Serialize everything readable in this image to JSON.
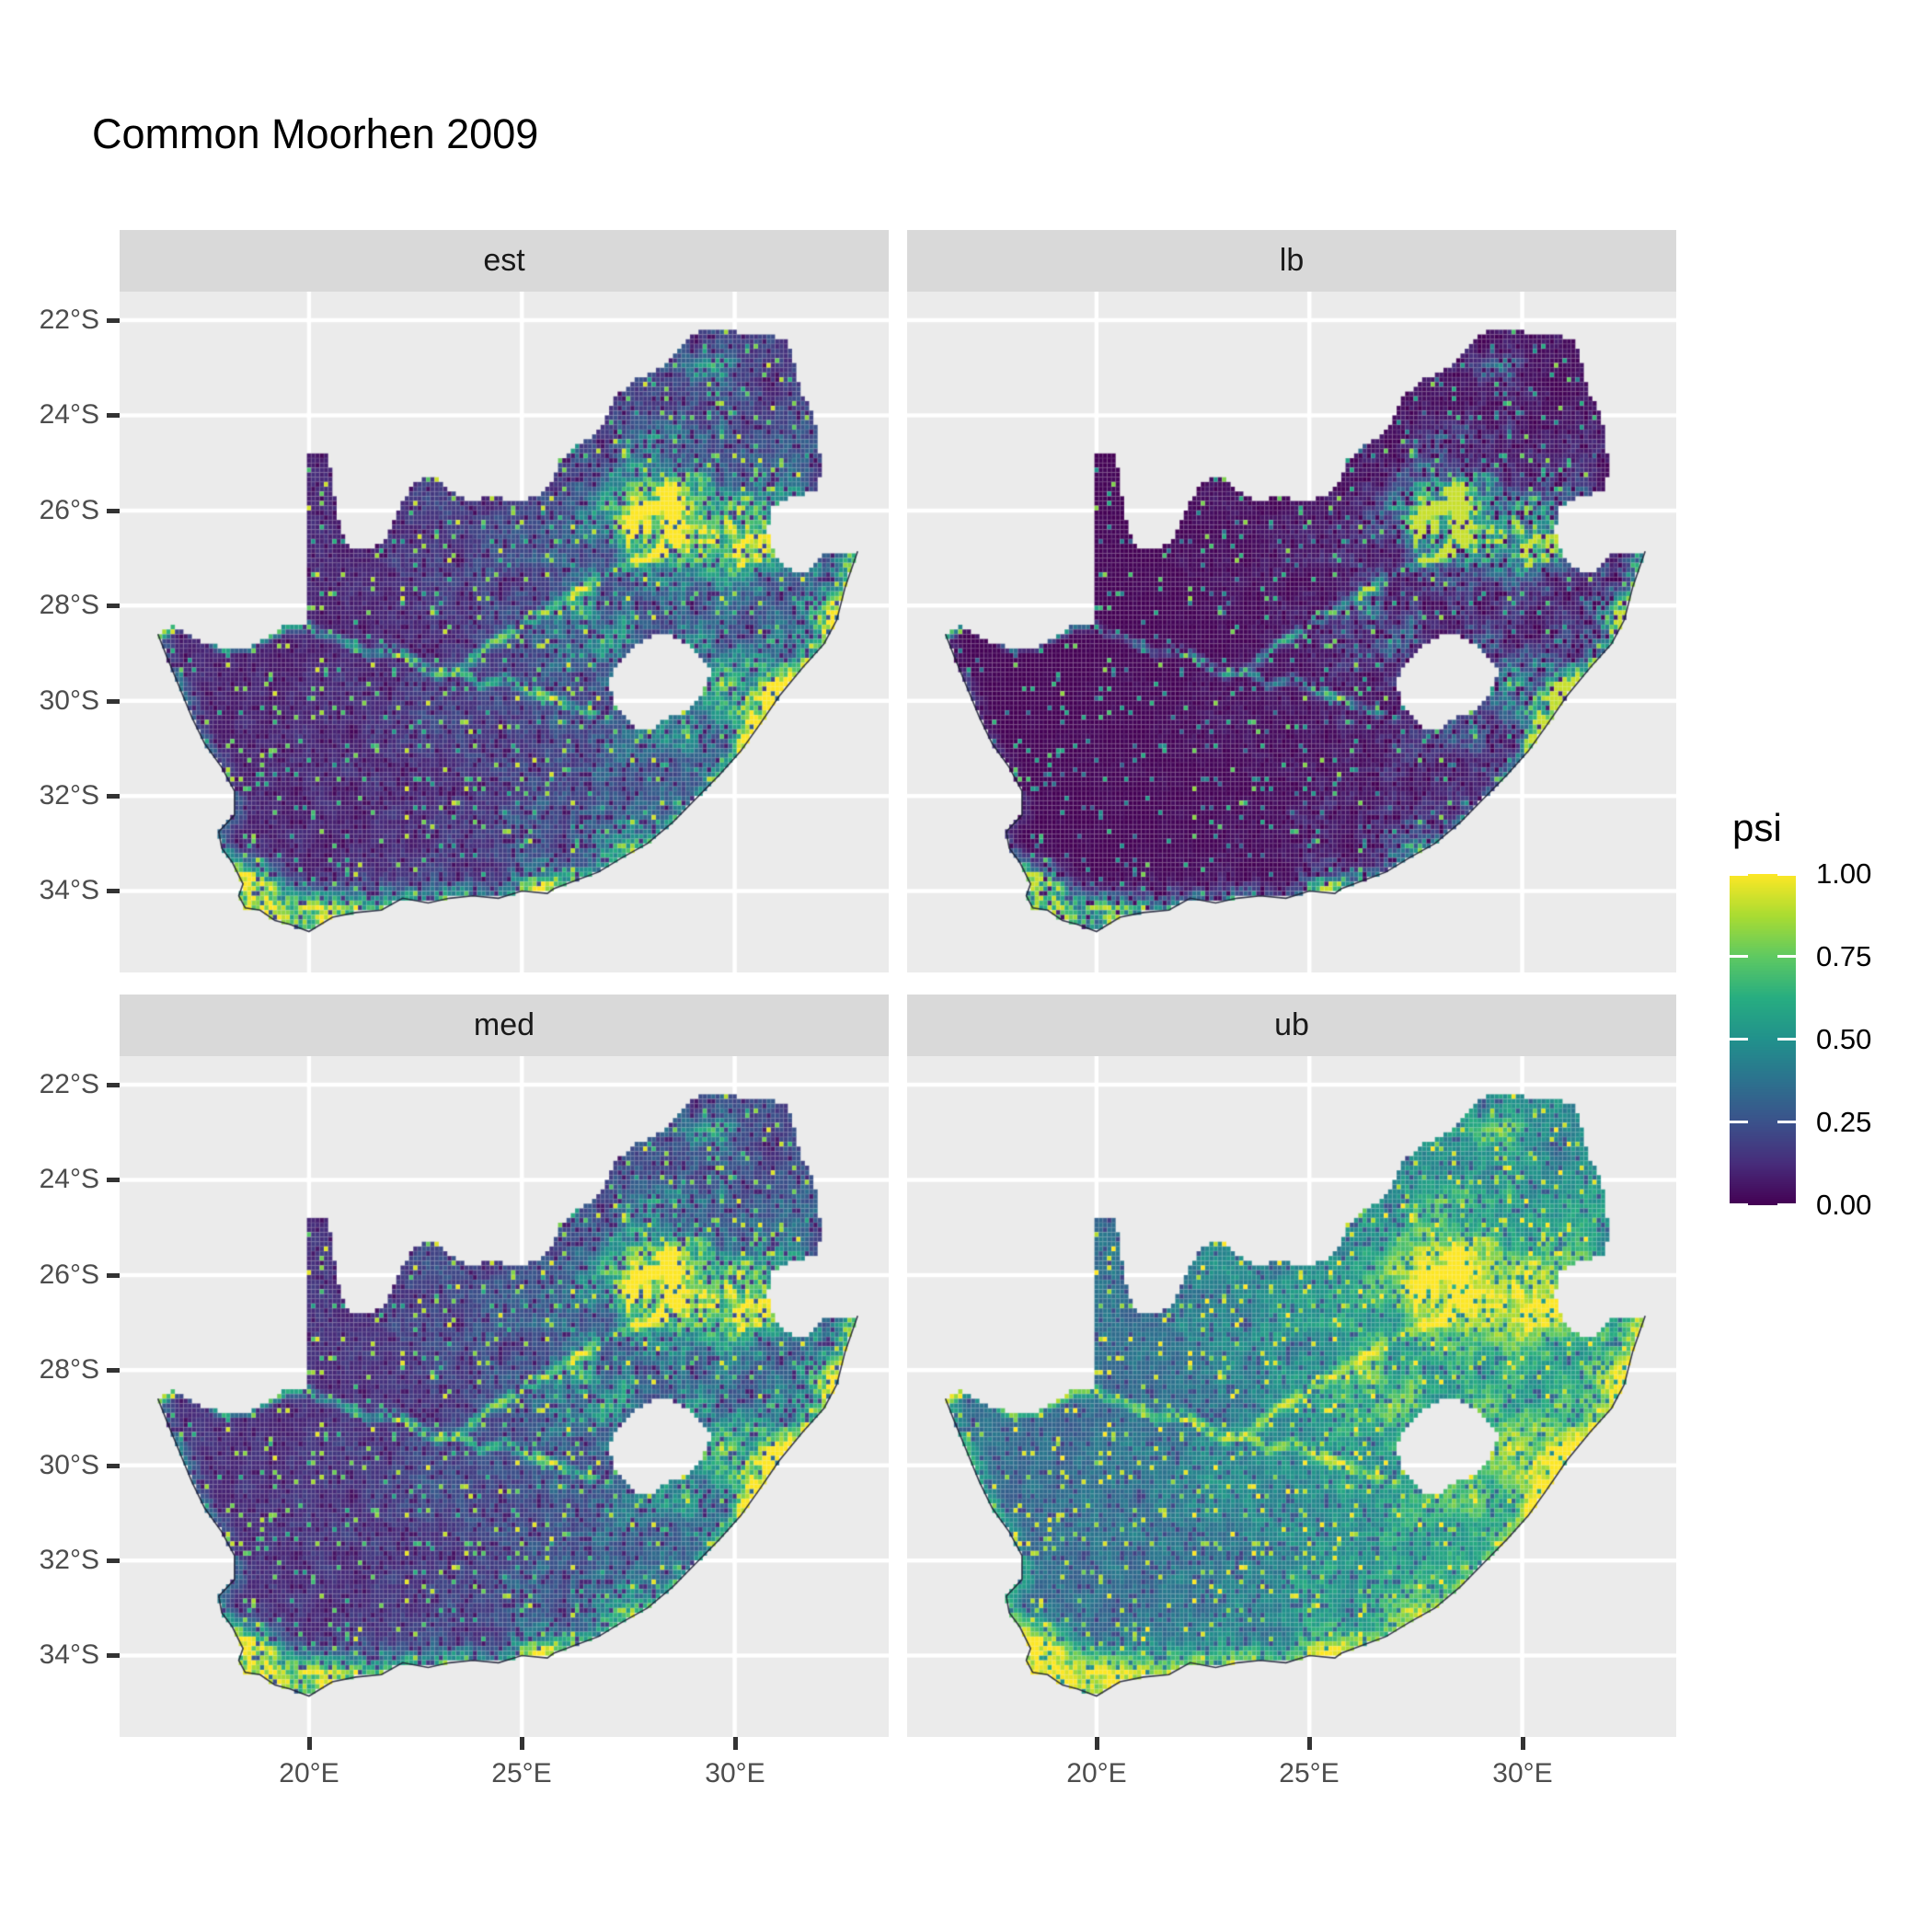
{
  "title": "Common Moorhen 2009",
  "facets": [
    {
      "id": "est",
      "label": "est"
    },
    {
      "id": "lb",
      "label": "lb"
    },
    {
      "id": "med",
      "label": "med"
    },
    {
      "id": "ub",
      "label": "ub"
    }
  ],
  "x_axis": {
    "ticks": [
      "20°E",
      "25°E",
      "30°E"
    ],
    "values": [
      20,
      25,
      30
    ]
  },
  "y_axis": {
    "ticks": [
      "22°S",
      "24°S",
      "26°S",
      "28°S",
      "30°S",
      "32°S",
      "34°S"
    ],
    "values": [
      -22,
      -24,
      -26,
      -28,
      -30,
      -32,
      -34
    ]
  },
  "legend": {
    "title": "psi",
    "tick_labels": [
      "1.00",
      "0.75",
      "0.50",
      "0.25",
      "0.00"
    ],
    "tick_values": [
      1.0,
      0.75,
      0.5,
      0.25,
      0.0
    ]
  },
  "colors": {
    "panel_bg": "#EBEBEB",
    "strip_bg": "#D9D9D9",
    "grid": "#FFFFFF",
    "tick": "#333333",
    "axis_text": "#4D4D4D",
    "strip_text": "#1A1A1A",
    "title_text": "#000000",
    "viridis": [
      "#440154",
      "#472D7B",
      "#3B528B",
      "#2C728E",
      "#21918C",
      "#27AD81",
      "#5EC962",
      "#AADC32",
      "#FDE725"
    ]
  },
  "chart_data": {
    "type": "heatmap",
    "title": "Common Moorhen 2009",
    "variable": "psi",
    "value_range": [
      0,
      1
    ],
    "facet_variable_values": [
      "est",
      "lb",
      "med",
      "ub"
    ],
    "region": "South Africa",
    "hole_region": "Lesotho",
    "lon_range": [
      15.55,
      33.62
    ],
    "lat_range": [
      -35.71,
      -21.4
    ],
    "cell_size_deg": 0.1,
    "grid_lons": [
      20,
      25,
      30
    ],
    "grid_lats": [
      -22,
      -24,
      -26,
      -28,
      -30,
      -32,
      -34
    ],
    "panel_transforms": {
      "est": {
        "gamma": 1.0,
        "gain": 1.0,
        "offset": 0.0
      },
      "lb": {
        "gamma": 1.7,
        "gain": 0.93,
        "offset": -0.01
      },
      "med": {
        "gamma": 0.93,
        "gain": 1.0,
        "offset": 0.02
      },
      "ub": {
        "gamma": 0.5,
        "gain": 1.0,
        "offset": 0.05
      }
    },
    "sa_polygon": [
      [
        16.45,
        -28.6
      ],
      [
        16.8,
        -28.4
      ],
      [
        17.15,
        -28.6
      ],
      [
        17.6,
        -28.8
      ],
      [
        18.1,
        -28.9
      ],
      [
        18.55,
        -28.88
      ],
      [
        19.0,
        -28.68
      ],
      [
        19.4,
        -28.45
      ],
      [
        19.75,
        -28.4
      ],
      [
        19.98,
        -28.45
      ],
      [
        19.98,
        -24.78
      ],
      [
        20.45,
        -24.8
      ],
      [
        20.55,
        -25.4
      ],
      [
        20.65,
        -26.0
      ],
      [
        20.78,
        -26.45
      ],
      [
        20.95,
        -26.8
      ],
      [
        21.45,
        -26.85
      ],
      [
        21.85,
        -26.55
      ],
      [
        22.15,
        -25.9
      ],
      [
        22.5,
        -25.38
      ],
      [
        23.0,
        -25.28
      ],
      [
        23.35,
        -25.62
      ],
      [
        23.75,
        -25.82
      ],
      [
        24.3,
        -25.7
      ],
      [
        24.9,
        -25.8
      ],
      [
        25.4,
        -25.68
      ],
      [
        25.7,
        -25.45
      ],
      [
        25.9,
        -24.95
      ],
      [
        26.3,
        -24.65
      ],
      [
        26.85,
        -24.3
      ],
      [
        27.15,
        -23.65
      ],
      [
        27.7,
        -23.25
      ],
      [
        28.3,
        -23.0
      ],
      [
        29.05,
        -22.3
      ],
      [
        29.5,
        -22.15
      ],
      [
        30.05,
        -22.25
      ],
      [
        30.6,
        -22.3
      ],
      [
        31.25,
        -22.4
      ],
      [
        31.4,
        -22.9
      ],
      [
        31.55,
        -23.5
      ],
      [
        31.85,
        -23.95
      ],
      [
        31.95,
        -24.5
      ],
      [
        32.05,
        -25.1
      ],
      [
        31.95,
        -25.55
      ],
      [
        31.3,
        -25.75
      ],
      [
        30.85,
        -25.95
      ],
      [
        30.78,
        -26.4
      ],
      [
        30.9,
        -26.8
      ],
      [
        31.15,
        -27.2
      ],
      [
        31.6,
        -27.32
      ],
      [
        31.97,
        -27.1
      ],
      [
        32.05,
        -26.86
      ],
      [
        32.5,
        -26.86
      ],
      [
        32.89,
        -26.86
      ],
      [
        32.6,
        -27.6
      ],
      [
        32.4,
        -28.3
      ],
      [
        32.1,
        -28.8
      ],
      [
        31.6,
        -29.3
      ],
      [
        31.05,
        -29.9
      ],
      [
        30.55,
        -30.55
      ],
      [
        30.15,
        -31.05
      ],
      [
        29.65,
        -31.55
      ],
      [
        29.1,
        -32.05
      ],
      [
        28.55,
        -32.55
      ],
      [
        27.95,
        -33.0
      ],
      [
        27.35,
        -33.3
      ],
      [
        26.8,
        -33.6
      ],
      [
        26.25,
        -33.78
      ],
      [
        25.75,
        -33.95
      ],
      [
        25.6,
        -34.05
      ],
      [
        25.0,
        -34.0
      ],
      [
        24.45,
        -34.15
      ],
      [
        23.85,
        -34.1
      ],
      [
        23.3,
        -34.15
      ],
      [
        22.8,
        -34.25
      ],
      [
        22.2,
        -34.15
      ],
      [
        21.7,
        -34.4
      ],
      [
        21.1,
        -34.45
      ],
      [
        20.55,
        -34.55
      ],
      [
        20.0,
        -34.85
      ],
      [
        19.55,
        -34.7
      ],
      [
        19.2,
        -34.62
      ],
      [
        18.85,
        -34.4
      ],
      [
        18.5,
        -34.35
      ],
      [
        18.35,
        -34.1
      ],
      [
        18.45,
        -33.85
      ],
      [
        18.2,
        -33.4
      ],
      [
        17.95,
        -33.1
      ],
      [
        17.88,
        -32.75
      ],
      [
        18.25,
        -32.4
      ],
      [
        18.25,
        -31.9
      ],
      [
        17.95,
        -31.4
      ],
      [
        17.55,
        -30.9
      ],
      [
        17.25,
        -30.35
      ],
      [
        16.95,
        -29.7
      ],
      [
        16.65,
        -29.05
      ]
    ],
    "lesotho_polygon": [
      [
        27.02,
        -29.6
      ],
      [
        27.35,
        -29.1
      ],
      [
        27.6,
        -28.88
      ],
      [
        28.05,
        -28.65
      ],
      [
        28.45,
        -28.6
      ],
      [
        28.85,
        -28.8
      ],
      [
        29.15,
        -29.0
      ],
      [
        29.45,
        -29.3
      ],
      [
        29.35,
        -29.65
      ],
      [
        29.15,
        -29.95
      ],
      [
        28.85,
        -30.2
      ],
      [
        28.45,
        -30.35
      ],
      [
        28.1,
        -30.55
      ],
      [
        27.75,
        -30.62
      ],
      [
        27.45,
        -30.4
      ],
      [
        27.2,
        -30.05
      ]
    ],
    "coast": [
      [
        32.89,
        -26.86,
        0.45
      ],
      [
        32.6,
        -27.6,
        0.45
      ],
      [
        32.4,
        -28.3,
        0.45
      ],
      [
        32.1,
        -28.8,
        0.45
      ],
      [
        31.6,
        -29.3,
        0.45
      ],
      [
        31.05,
        -29.9,
        0.45
      ],
      [
        30.55,
        -30.55,
        0.42
      ],
      [
        30.15,
        -31.05,
        0.4
      ],
      [
        29.65,
        -31.55,
        0.38
      ],
      [
        29.1,
        -32.05,
        0.35
      ],
      [
        28.55,
        -32.55,
        0.33
      ],
      [
        27.95,
        -33.0,
        0.32
      ],
      [
        27.35,
        -33.3,
        0.3
      ],
      [
        26.8,
        -33.6,
        0.3
      ],
      [
        26.25,
        -33.78,
        0.3
      ],
      [
        25.75,
        -33.95,
        0.32
      ],
      [
        25.6,
        -34.05,
        0.32
      ],
      [
        25.0,
        -34.0,
        0.3
      ],
      [
        24.45,
        -34.15,
        0.3
      ],
      [
        23.85,
        -34.1,
        0.3
      ],
      [
        23.3,
        -34.15,
        0.3
      ],
      [
        22.8,
        -34.25,
        0.3
      ],
      [
        22.2,
        -34.15,
        0.32
      ],
      [
        21.7,
        -34.4,
        0.33
      ],
      [
        21.1,
        -34.45,
        0.35
      ],
      [
        20.55,
        -34.55,
        0.38
      ],
      [
        20.0,
        -34.85,
        0.42
      ],
      [
        19.55,
        -34.7,
        0.45
      ],
      [
        19.2,
        -34.62,
        0.45
      ],
      [
        18.85,
        -34.4,
        0.45
      ],
      [
        18.5,
        -34.35,
        0.42
      ],
      [
        18.35,
        -34.1,
        0.4
      ],
      [
        18.45,
        -33.85,
        0.4
      ],
      [
        18.2,
        -33.4,
        0.32
      ],
      [
        17.95,
        -33.1,
        0.28
      ],
      [
        17.88,
        -32.75,
        0.25
      ],
      [
        18.25,
        -32.4,
        0.22
      ],
      [
        18.25,
        -31.9,
        0.2
      ],
      [
        17.95,
        -31.4,
        0.2
      ],
      [
        17.55,
        -30.9,
        0.2
      ],
      [
        17.25,
        -30.35,
        0.2
      ],
      [
        16.95,
        -29.7,
        0.2
      ],
      [
        16.65,
        -29.05,
        0.2
      ],
      [
        16.45,
        -28.6,
        0.22
      ]
    ],
    "rivers": [
      [
        [
          16.45,
          -28.6
        ],
        [
          17.0,
          -28.4
        ],
        [
          17.55,
          -28.72
        ],
        [
          18.1,
          -28.9
        ],
        [
          18.6,
          -28.86
        ],
        [
          19.05,
          -28.65
        ],
        [
          19.5,
          -28.42
        ],
        [
          19.98,
          -28.45
        ],
        [
          20.45,
          -28.65
        ],
        [
          20.95,
          -28.8
        ],
        [
          21.45,
          -29.05
        ],
        [
          21.95,
          -28.9
        ],
        [
          22.45,
          -29.15
        ],
        [
          22.95,
          -29.45
        ],
        [
          23.5,
          -29.35
        ],
        [
          24.05,
          -29.65
        ],
        [
          24.6,
          -29.55
        ],
        [
          25.15,
          -29.75
        ],
        [
          25.7,
          -29.95
        ],
        [
          26.3,
          -30.15
        ],
        [
          26.75,
          -30.3
        ],
        [
          27.05,
          -30.35
        ]
      ],
      [
        [
          23.7,
          -29.25
        ],
        [
          24.2,
          -28.85
        ],
        [
          24.75,
          -28.55
        ],
        [
          25.3,
          -28.25
        ],
        [
          25.85,
          -27.95
        ],
        [
          26.4,
          -27.65
        ],
        [
          26.95,
          -27.35
        ],
        [
          27.45,
          -27.15
        ],
        [
          27.95,
          -26.95
        ],
        [
          28.35,
          -26.85
        ]
      ]
    ],
    "hotspots": [
      [
        28.05,
        -26.15,
        1.05,
        0.85,
        0.7
      ],
      [
        28.3,
        -25.75,
        0.6,
        0.45,
        0.4
      ],
      [
        29.9,
        -26.4,
        1.4,
        0.8,
        0.4
      ],
      [
        30.2,
        -26.8,
        0.8,
        0.6,
        0.3
      ],
      [
        31.05,
        -29.75,
        0.55,
        0.75,
        0.45
      ],
      [
        32.1,
        -28.7,
        0.55,
        0.85,
        0.4
      ],
      [
        29.55,
        -29.45,
        0.85,
        0.65,
        0.4
      ],
      [
        28.6,
        -30.55,
        0.7,
        0.5,
        0.3
      ],
      [
        27.05,
        -29.05,
        0.55,
        0.55,
        0.22
      ],
      [
        26.6,
        -28.3,
        1.1,
        0.8,
        0.25
      ],
      [
        18.7,
        -33.95,
        0.55,
        0.5,
        0.75
      ],
      [
        19.7,
        -34.45,
        0.95,
        0.45,
        0.55
      ],
      [
        21.7,
        -34.25,
        1.6,
        0.45,
        0.3
      ],
      [
        25.55,
        -33.9,
        0.7,
        0.5,
        0.4
      ],
      [
        27.6,
        -33.05,
        0.75,
        0.55,
        0.28
      ],
      [
        30.4,
        -30.4,
        0.45,
        0.6,
        0.35
      ],
      [
        29.3,
        -22.95,
        0.9,
        0.3,
        0.22
      ],
      [
        28.35,
        -24.45,
        0.9,
        0.35,
        0.18
      ]
    ]
  }
}
